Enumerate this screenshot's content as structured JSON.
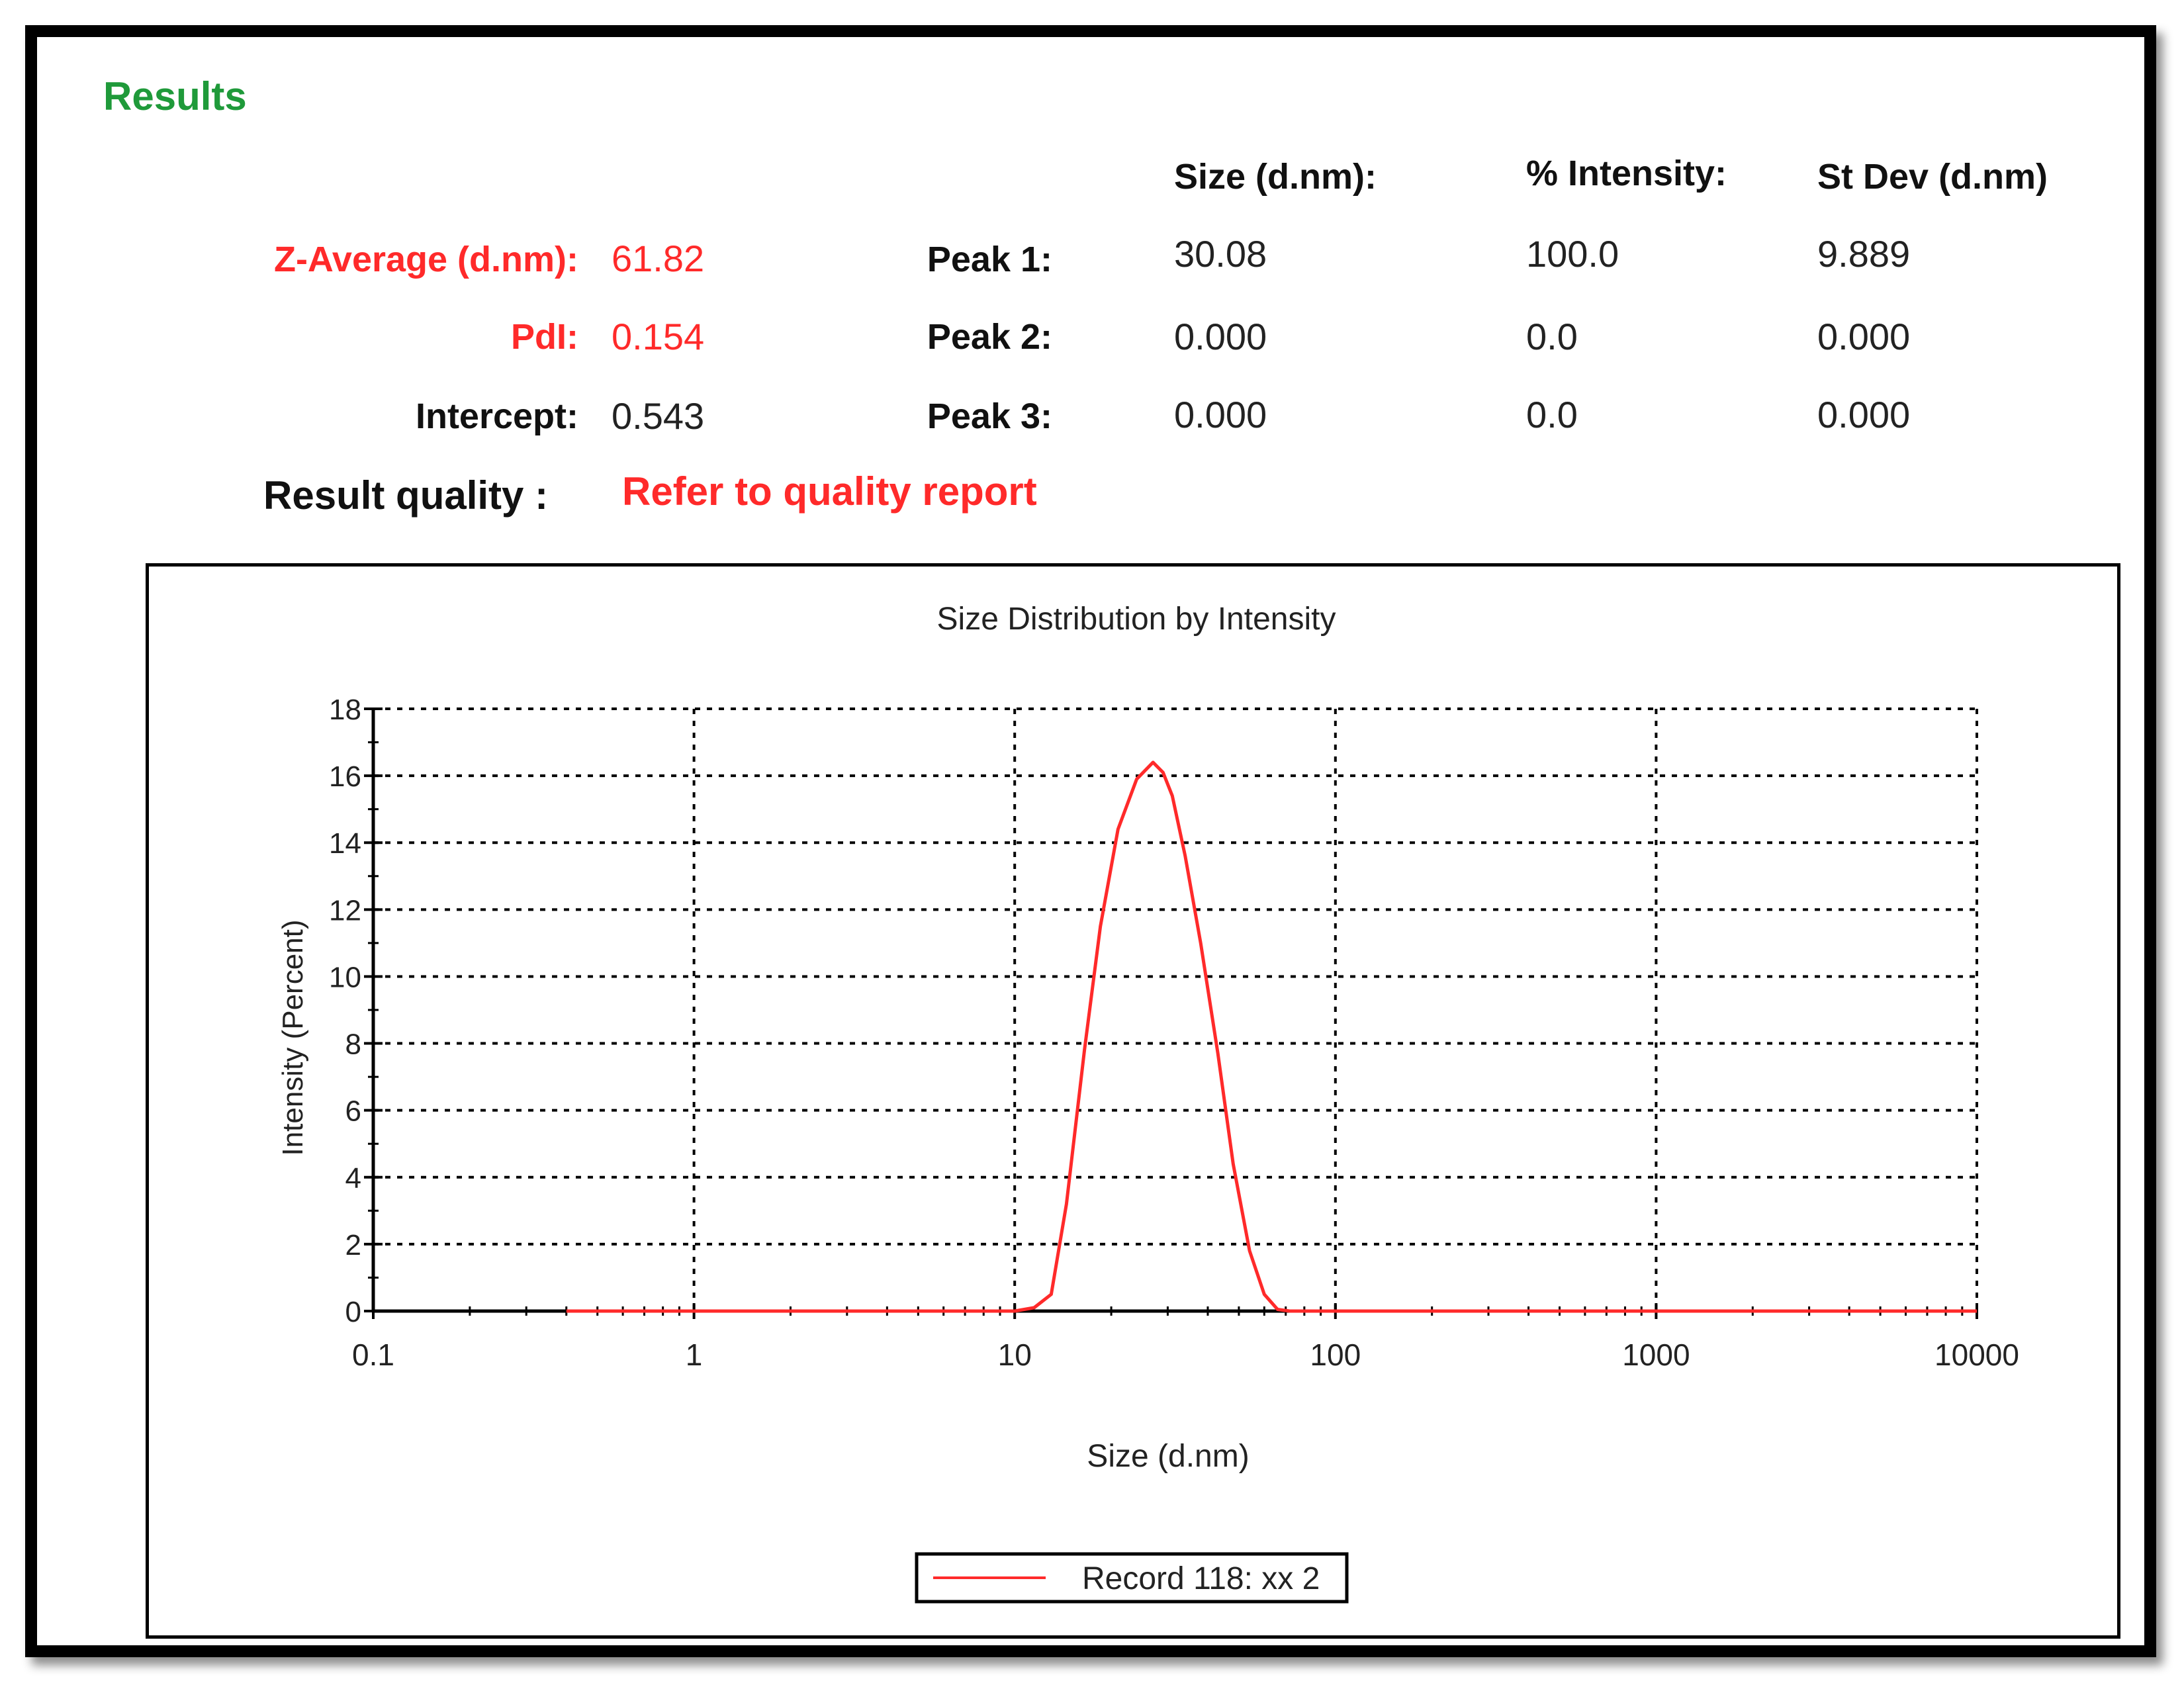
{
  "results": {
    "heading": "Results",
    "columns": {
      "size": "Size (d.nm):",
      "intensity": "% Intensity:",
      "stdev": "St Dev (d.nm)"
    },
    "z_average": {
      "label": "Z-Average (d.nm):",
      "value": "61.82"
    },
    "pdi": {
      "label": "PdI:",
      "value": "0.154"
    },
    "intercept": {
      "label": "Intercept:",
      "value": "0.543"
    },
    "quality": {
      "label": "Result quality :",
      "value": "Refer to quality report"
    },
    "peaks": [
      {
        "label": "Peak 1:",
        "size": "30.08",
        "intensity": "100.0",
        "stdev": "9.889"
      },
      {
        "label": "Peak 2:",
        "size": "0.000",
        "intensity": "0.0",
        "stdev": "0.000"
      },
      {
        "label": "Peak 3:",
        "size": "0.000",
        "intensity": "0.0",
        "stdev": "0.000"
      }
    ]
  },
  "colors": {
    "heading": "#1f9a3a",
    "highlight": "#ff2a2a",
    "series": "#ff2a2a",
    "text": "#111111"
  },
  "chart_data": {
    "type": "line",
    "title": "Size Distribution by Intensity",
    "xlabel": "Size (d.nm)",
    "ylabel": "Intensity (Percent)",
    "x_scale": "log",
    "xlim": [
      0.1,
      10000
    ],
    "ylim": [
      0,
      18
    ],
    "x_ticks": [
      "0.1",
      "1",
      "10",
      "100",
      "1000",
      "10000"
    ],
    "y_ticks": [
      "0",
      "2",
      "4",
      "6",
      "8",
      "10",
      "12",
      "14",
      "16",
      "18"
    ],
    "grid": "dotted",
    "legend_position": "bottom-center",
    "series": [
      {
        "name": "Record 118: xx 2",
        "color": "#ff2a2a",
        "x": [
          0.4,
          1,
          5,
          10,
          11.5,
          13,
          14.5,
          16.5,
          18.5,
          21,
          24,
          27,
          29,
          31,
          34,
          38,
          43,
          48,
          54,
          60,
          66,
          72,
          80,
          100,
          1000,
          10000
        ],
        "y": [
          0,
          0,
          0,
          0,
          0.1,
          0.5,
          3.2,
          7.8,
          11.5,
          14.4,
          15.9,
          16.4,
          16.1,
          15.4,
          13.6,
          11.0,
          7.7,
          4.4,
          1.8,
          0.5,
          0.05,
          0,
          0,
          0,
          0,
          0
        ]
      }
    ]
  }
}
